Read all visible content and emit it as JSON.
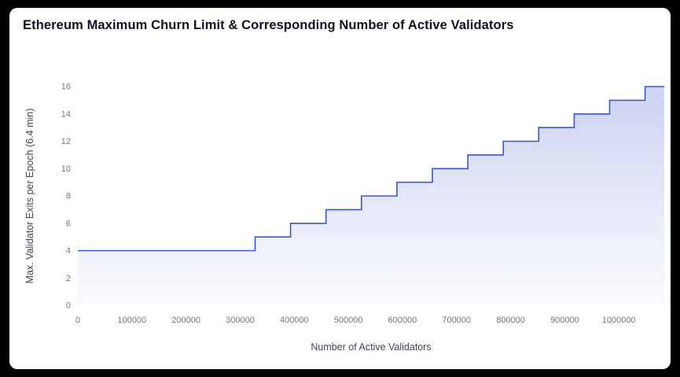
{
  "colors": {
    "background": "#000000",
    "card_background": "#ffffff",
    "line": "#3c55c8",
    "fill_top_opacity": 0.26,
    "fill_bottom_opacity": 0.02,
    "tick_text": "#70757e",
    "axis_label_text": "#3f4753",
    "title_text": "#0d1321"
  },
  "chart_data": {
    "type": "area",
    "subtype": "step",
    "title": "Ethereum Maximum Churn Limit & Corresponding Number of Active Validators",
    "xlabel": "Number of Active Validators",
    "ylabel": "Max. Validator Exits per Epoch (6.4 min)",
    "xlim": [
      0,
      1084000
    ],
    "ylim": [
      0,
      16
    ],
    "x_ticks": [
      0,
      100000,
      200000,
      300000,
      400000,
      500000,
      600000,
      700000,
      800000,
      900000,
      1000000
    ],
    "y_ticks": [
      0,
      2,
      4,
      6,
      8,
      10,
      12,
      14,
      16
    ],
    "grid": false,
    "legend": false,
    "points": [
      {
        "x": 0,
        "y": 4
      },
      {
        "x": 327680,
        "y": 5
      },
      {
        "x": 393216,
        "y": 6
      },
      {
        "x": 458752,
        "y": 7
      },
      {
        "x": 524288,
        "y": 8
      },
      {
        "x": 589824,
        "y": 9
      },
      {
        "x": 655360,
        "y": 10
      },
      {
        "x": 720896,
        "y": 11
      },
      {
        "x": 786432,
        "y": 12
      },
      {
        "x": 851968,
        "y": 13
      },
      {
        "x": 917504,
        "y": 14
      },
      {
        "x": 983040,
        "y": 15
      },
      {
        "x": 1048576,
        "y": 16
      },
      {
        "x": 1084000,
        "y": 16
      }
    ]
  }
}
